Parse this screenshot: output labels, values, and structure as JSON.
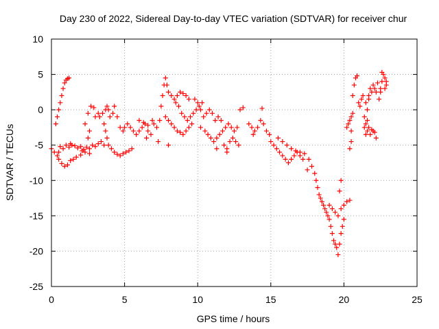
{
  "chart_data": {
    "type": "scatter",
    "title": "Day 230 of 2022, Sidereal Day-to-day VTEC variation (SDTVAR) for receiver chur",
    "xlabel": "GPS time / hours",
    "ylabel": "SDTVAR / TECUs",
    "xlim": [
      0,
      25
    ],
    "ylim": [
      -25,
      10
    ],
    "xticks": [
      0,
      5,
      10,
      15,
      20,
      25
    ],
    "yticks": [
      -25,
      -20,
      -15,
      -10,
      -5,
      0,
      5,
      10
    ],
    "grid": true,
    "marker": "+",
    "series": [
      {
        "name": "SDTVAR",
        "color": "#ff0000",
        "points": [
          [
            0.0,
            -5.5
          ],
          [
            0.2,
            -6.0
          ],
          [
            0.4,
            -6.5
          ],
          [
            0.5,
            -6.0
          ],
          [
            0.6,
            -5.2
          ],
          [
            0.8,
            -5.5
          ],
          [
            1.0,
            -5.0
          ],
          [
            1.2,
            -5.3
          ],
          [
            1.4,
            -5.0
          ],
          [
            1.6,
            -5.1
          ],
          [
            1.8,
            -5.4
          ],
          [
            2.0,
            -5.2
          ],
          [
            2.2,
            -5.6
          ],
          [
            2.4,
            -5.3
          ],
          [
            2.6,
            -5.5
          ],
          [
            2.8,
            -5.0
          ],
          [
            3.0,
            -5.2
          ],
          [
            3.2,
            -4.8
          ],
          [
            3.4,
            -4.5
          ],
          [
            3.6,
            -5.0
          ],
          [
            0.5,
            -7.0
          ],
          [
            0.7,
            -7.6
          ],
          [
            0.9,
            -8.0
          ],
          [
            1.1,
            -7.8
          ],
          [
            1.3,
            -7.2
          ],
          [
            1.5,
            -7.0
          ],
          [
            1.7,
            -6.7
          ],
          [
            2.0,
            -6.4
          ],
          [
            2.3,
            -6.0
          ],
          [
            2.6,
            -6.2
          ],
          [
            0.3,
            -2.0
          ],
          [
            0.4,
            -1.0
          ],
          [
            0.5,
            0.0
          ],
          [
            0.6,
            1.0
          ],
          [
            0.7,
            2.0
          ],
          [
            0.8,
            3.0
          ],
          [
            0.9,
            3.8
          ],
          [
            1.0,
            4.2
          ],
          [
            1.1,
            4.4
          ],
          [
            1.2,
            4.5
          ],
          [
            2.3,
            -2.0
          ],
          [
            2.5,
            -0.5
          ],
          [
            2.7,
            0.5
          ],
          [
            2.9,
            0.3
          ],
          [
            3.0,
            -1.0
          ],
          [
            2.6,
            -3.0
          ],
          [
            2.5,
            -4.0
          ],
          [
            3.3,
            -1.0
          ],
          [
            3.5,
            -0.5
          ],
          [
            3.7,
            0.0
          ],
          [
            3.8,
            0.5
          ],
          [
            3.9,
            0.0
          ],
          [
            4.0,
            -1.0
          ],
          [
            3.6,
            -2.0
          ],
          [
            3.7,
            -3.0
          ],
          [
            3.8,
            -4.0
          ],
          [
            3.9,
            -5.0
          ],
          [
            4.1,
            -5.5
          ],
          [
            4.3,
            -6.0
          ],
          [
            4.5,
            -6.3
          ],
          [
            4.7,
            -6.5
          ],
          [
            4.9,
            -6.2
          ],
          [
            5.1,
            -6.0
          ],
          [
            5.3,
            -5.8
          ],
          [
            5.5,
            -5.5
          ],
          [
            4.2,
            -0.5
          ],
          [
            4.3,
            0.5
          ],
          [
            4.5,
            -1.0
          ],
          [
            4.7,
            -2.5
          ],
          [
            4.9,
            -3.0
          ],
          [
            5.0,
            -2.5
          ],
          [
            5.2,
            -2.0
          ],
          [
            5.4,
            -2.5
          ],
          [
            5.6,
            -3.0
          ],
          [
            5.8,
            -3.5
          ],
          [
            6.0,
            -3.0
          ],
          [
            6.2,
            -2.5
          ],
          [
            6.4,
            -2.0
          ],
          [
            6.6,
            -3.0
          ],
          [
            6.8,
            -3.5
          ],
          [
            6.0,
            -1.5
          ],
          [
            6.3,
            -1.8
          ],
          [
            6.6,
            -2.2
          ],
          [
            6.9,
            -1.5
          ],
          [
            7.0,
            -2.0
          ],
          [
            7.2,
            -2.5
          ],
          [
            7.4,
            -1.5
          ],
          [
            7.5,
            0.5
          ],
          [
            7.6,
            2.0
          ],
          [
            7.7,
            3.5
          ],
          [
            7.8,
            4.5
          ],
          [
            7.9,
            3.5
          ],
          [
            8.0,
            2.5
          ],
          [
            8.2,
            2.0
          ],
          [
            8.4,
            1.5
          ],
          [
            8.6,
            2.0
          ],
          [
            8.8,
            2.5
          ],
          [
            9.0,
            2.3
          ],
          [
            9.2,
            2.0
          ],
          [
            9.4,
            1.5
          ],
          [
            7.8,
            -1.0
          ],
          [
            8.0,
            -1.5
          ],
          [
            8.2,
            -2.0
          ],
          [
            8.4,
            -2.5
          ],
          [
            8.6,
            -3.0
          ],
          [
            8.8,
            -3.2
          ],
          [
            9.0,
            -3.5
          ],
          [
            9.2,
            -3.0
          ],
          [
            9.4,
            -2.5
          ],
          [
            9.6,
            -2.0
          ],
          [
            8.5,
            1.0
          ],
          [
            8.7,
            0.5
          ],
          [
            8.9,
            -0.5
          ],
          [
            9.1,
            -1.0
          ],
          [
            9.3,
            -1.5
          ],
          [
            9.5,
            -1.0
          ],
          [
            9.7,
            -0.5
          ],
          [
            9.9,
            0.0
          ],
          [
            10.1,
            0.5
          ],
          [
            10.3,
            1.0
          ],
          [
            9.8,
            1.5
          ],
          [
            10.0,
            1.0
          ],
          [
            10.2,
            0.0
          ],
          [
            10.4,
            -1.0
          ],
          [
            10.6,
            -0.5
          ],
          [
            10.8,
            0.0
          ],
          [
            11.0,
            -0.5
          ],
          [
            11.2,
            -1.5
          ],
          [
            11.4,
            -1.0
          ],
          [
            11.6,
            -1.5
          ],
          [
            10.5,
            -3.0
          ],
          [
            10.7,
            -3.5
          ],
          [
            10.9,
            -4.0
          ],
          [
            11.1,
            -4.5
          ],
          [
            11.3,
            -4.0
          ],
          [
            11.5,
            -3.5
          ],
          [
            11.7,
            -3.0
          ],
          [
            11.9,
            -2.5
          ],
          [
            12.1,
            -2.0
          ],
          [
            12.3,
            -2.5
          ],
          [
            11.8,
            -5.0
          ],
          [
            12.0,
            -5.5
          ],
          [
            12.2,
            -4.5
          ],
          [
            12.4,
            -4.0
          ],
          [
            12.6,
            -4.5
          ],
          [
            12.8,
            -5.0
          ],
          [
            12.5,
            -3.0
          ],
          [
            12.7,
            -2.5
          ],
          [
            12.9,
            0.0
          ],
          [
            13.1,
            0.3
          ],
          [
            13.5,
            -2.0
          ],
          [
            13.7,
            -2.5
          ],
          [
            13.9,
            -3.0
          ],
          [
            14.1,
            -2.5
          ],
          [
            14.3,
            -1.5
          ],
          [
            14.5,
            -2.0
          ],
          [
            14.7,
            -3.0
          ],
          [
            14.9,
            -3.5
          ],
          [
            15.0,
            -4.5
          ],
          [
            15.2,
            -5.0
          ],
          [
            15.4,
            -5.5
          ],
          [
            15.6,
            -6.0
          ],
          [
            15.8,
            -6.5
          ],
          [
            16.0,
            -7.0
          ],
          [
            16.2,
            -7.5
          ],
          [
            16.4,
            -7.0
          ],
          [
            16.6,
            -6.5
          ],
          [
            16.8,
            -6.0
          ],
          [
            17.0,
            -6.5
          ],
          [
            17.2,
            -7.0
          ],
          [
            15.5,
            -4.0
          ],
          [
            15.8,
            -4.5
          ],
          [
            16.1,
            -5.0
          ],
          [
            16.4,
            -5.5
          ],
          [
            16.7,
            -5.8
          ],
          [
            17.0,
            -6.0
          ],
          [
            17.3,
            -6.2
          ],
          [
            17.6,
            -7.0
          ],
          [
            17.8,
            -8.0
          ],
          [
            18.0,
            -9.0
          ],
          [
            18.1,
            -10.0
          ],
          [
            18.2,
            -11.0
          ],
          [
            18.3,
            -12.0
          ],
          [
            18.4,
            -12.5
          ],
          [
            18.5,
            -13.0
          ],
          [
            18.6,
            -13.5
          ],
          [
            18.7,
            -14.0
          ],
          [
            18.8,
            -14.5
          ],
          [
            18.9,
            -15.0
          ],
          [
            19.0,
            -15.5
          ],
          [
            19.1,
            -16.5
          ],
          [
            19.2,
            -17.5
          ],
          [
            19.3,
            -18.5
          ],
          [
            19.4,
            -19.0
          ],
          [
            19.5,
            -19.5
          ],
          [
            19.6,
            -20.5
          ],
          [
            19.7,
            -19.0
          ],
          [
            19.8,
            -17.5
          ],
          [
            19.9,
            -16.5
          ],
          [
            20.0,
            -15.5
          ],
          [
            19.0,
            -13.5
          ],
          [
            19.2,
            -14.0
          ],
          [
            19.4,
            -14.5
          ],
          [
            19.6,
            -15.0
          ],
          [
            19.8,
            -14.0
          ],
          [
            20.0,
            -13.5
          ],
          [
            20.2,
            -13.0
          ],
          [
            20.4,
            -12.8
          ],
          [
            19.7,
            -11.5
          ],
          [
            19.8,
            -10.0
          ],
          [
            20.3,
            -2.0
          ],
          [
            20.4,
            -1.5
          ],
          [
            20.5,
            -1.0
          ],
          [
            20.6,
            -0.5
          ],
          [
            20.2,
            -2.5
          ],
          [
            20.6,
            2.0
          ],
          [
            20.7,
            3.5
          ],
          [
            20.8,
            4.5
          ],
          [
            20.9,
            4.8
          ],
          [
            20.5,
            -3.0
          ],
          [
            21.0,
            1.0
          ],
          [
            21.1,
            0.5
          ],
          [
            21.2,
            1.5
          ],
          [
            21.3,
            2.0
          ],
          [
            21.4,
            -1.0
          ],
          [
            21.5,
            -2.0
          ],
          [
            21.6,
            -3.0
          ],
          [
            21.8,
            -3.5
          ],
          [
            22.0,
            -3.0
          ],
          [
            22.2,
            -4.0
          ],
          [
            21.5,
            1.0
          ],
          [
            21.6,
            0.0
          ],
          [
            21.7,
            2.0
          ],
          [
            21.8,
            3.0
          ],
          [
            22.0,
            3.5
          ],
          [
            22.2,
            2.5
          ],
          [
            22.4,
            1.5
          ],
          [
            22.5,
            2.5
          ],
          [
            22.6,
            4.0
          ],
          [
            22.7,
            5.0
          ],
          [
            22.8,
            4.5
          ],
          [
            22.9,
            3.5
          ],
          [
            22.5,
            3.0
          ],
          [
            22.3,
            3.8
          ],
          [
            22.1,
            3.0
          ],
          [
            21.9,
            2.5
          ],
          [
            21.7,
            1.5
          ],
          [
            22.6,
            5.3
          ],
          [
            22.8,
            3.0
          ],
          [
            22.9,
            4.0
          ],
          [
            21.6,
            -1.5
          ],
          [
            21.7,
            -2.5
          ],
          [
            21.9,
            -2.8
          ],
          [
            22.1,
            -3.2
          ],
          [
            21.5,
            -3.5
          ],
          [
            21.4,
            -2.5
          ],
          [
            20.5,
            -4.5
          ],
          [
            20.4,
            -5.5
          ],
          [
            8.0,
            -5.0
          ],
          [
            12.0,
            -6.0
          ],
          [
            14.4,
            0.2
          ],
          [
            13.8,
            -3.5
          ],
          [
            3.2,
            -0.5
          ],
          [
            2.1,
            -5.8
          ],
          [
            1.3,
            -4.8
          ],
          [
            6.5,
            -4.0
          ],
          [
            7.3,
            -4.5
          ],
          [
            10.2,
            -2.5
          ],
          [
            11.3,
            -5.5
          ],
          [
            17.5,
            -8.5
          ]
        ]
      }
    ]
  }
}
